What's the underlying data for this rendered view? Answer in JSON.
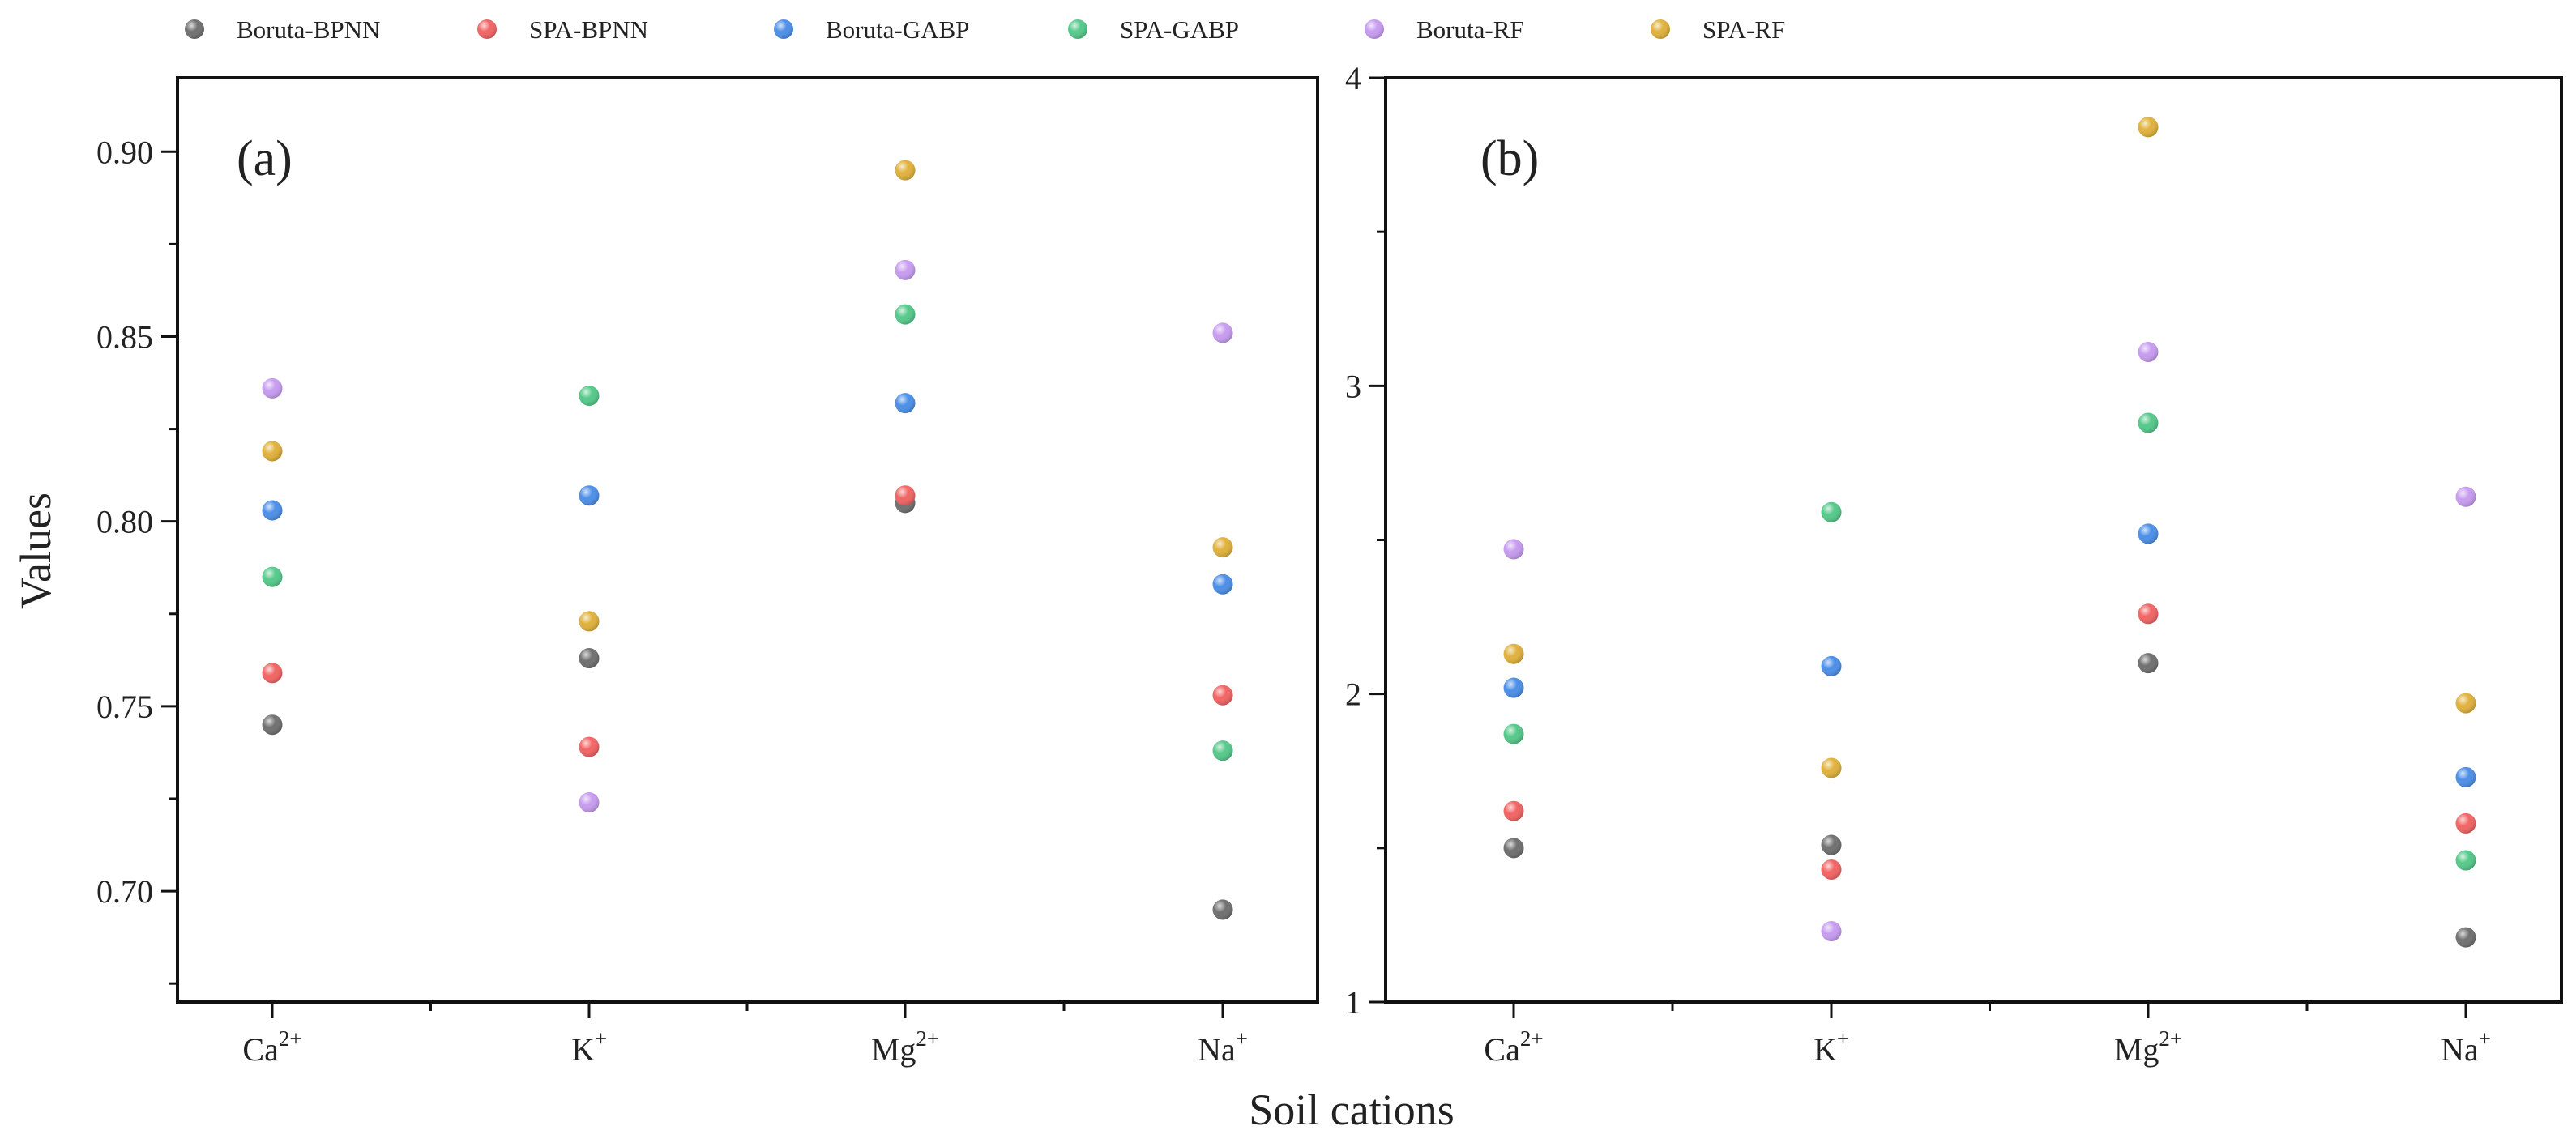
{
  "chart_data": {
    "type": "scatter",
    "xlabel": "Soil cations",
    "ylabel": "Values",
    "categories": [
      {
        "base": "Ca",
        "sup": "2+"
      },
      {
        "base": "K",
        "sup": "+"
      },
      {
        "base": "Mg",
        "sup": "2+"
      },
      {
        "base": "Na",
        "sup": "+"
      }
    ],
    "legend": {
      "placement": "top",
      "entries": [
        {
          "name": "Boruta-BPNN",
          "color": "#707070"
        },
        {
          "name": "SPA-BPNN",
          "color": "#f26464"
        },
        {
          "name": "Boruta-GABP",
          "color": "#4c8fe8"
        },
        {
          "name": "SPA-GABP",
          "color": "#55c98a"
        },
        {
          "name": "Boruta-RF",
          "color": "#c79cf0"
        },
        {
          "name": "SPA-RF",
          "color": "#e0b13c"
        }
      ]
    },
    "panels": [
      {
        "label": "(a)",
        "ylim": [
          0.67,
          0.92
        ],
        "yticks": [
          0.7,
          0.75,
          0.8,
          0.85,
          0.9
        ],
        "ytick_labels": [
          "0.70",
          "0.75",
          "0.80",
          "0.85",
          "0.90"
        ],
        "minor_step": 0.025,
        "series": [
          {
            "name": "Boruta-BPNN",
            "values": [
              0.745,
              0.763,
              0.805,
              0.695
            ]
          },
          {
            "name": "SPA-BPNN",
            "values": [
              0.759,
              0.739,
              0.807,
              0.753
            ]
          },
          {
            "name": "Boruta-GABP",
            "values": [
              0.803,
              0.807,
              0.832,
              0.783
            ]
          },
          {
            "name": "SPA-GABP",
            "values": [
              0.785,
              0.834,
              0.856,
              0.738
            ]
          },
          {
            "name": "Boruta-RF",
            "values": [
              0.836,
              0.724,
              0.868,
              0.851
            ]
          },
          {
            "name": "SPA-RF",
            "values": [
              0.819,
              0.773,
              0.895,
              0.793
            ]
          }
        ]
      },
      {
        "label": "(b)",
        "ylim": [
          1,
          4
        ],
        "yticks": [
          1,
          2,
          3,
          4
        ],
        "ytick_labels": [
          "1",
          "2",
          "3",
          "4"
        ],
        "minor_step": 0.5,
        "series": [
          {
            "name": "Boruta-BPNN",
            "values": [
              1.5,
              1.51,
              2.1,
              1.21
            ]
          },
          {
            "name": "SPA-BPNN",
            "values": [
              1.62,
              1.43,
              2.26,
              1.58
            ]
          },
          {
            "name": "Boruta-GABP",
            "values": [
              2.02,
              2.09,
              2.52,
              1.73
            ]
          },
          {
            "name": "SPA-GABP",
            "values": [
              1.87,
              2.59,
              2.88,
              1.46
            ]
          },
          {
            "name": "Boruta-RF",
            "values": [
              2.47,
              1.23,
              3.11,
              2.64
            ]
          },
          {
            "name": "SPA-RF",
            "values": [
              2.13,
              1.76,
              3.84,
              1.97
            ]
          }
        ]
      }
    ]
  }
}
